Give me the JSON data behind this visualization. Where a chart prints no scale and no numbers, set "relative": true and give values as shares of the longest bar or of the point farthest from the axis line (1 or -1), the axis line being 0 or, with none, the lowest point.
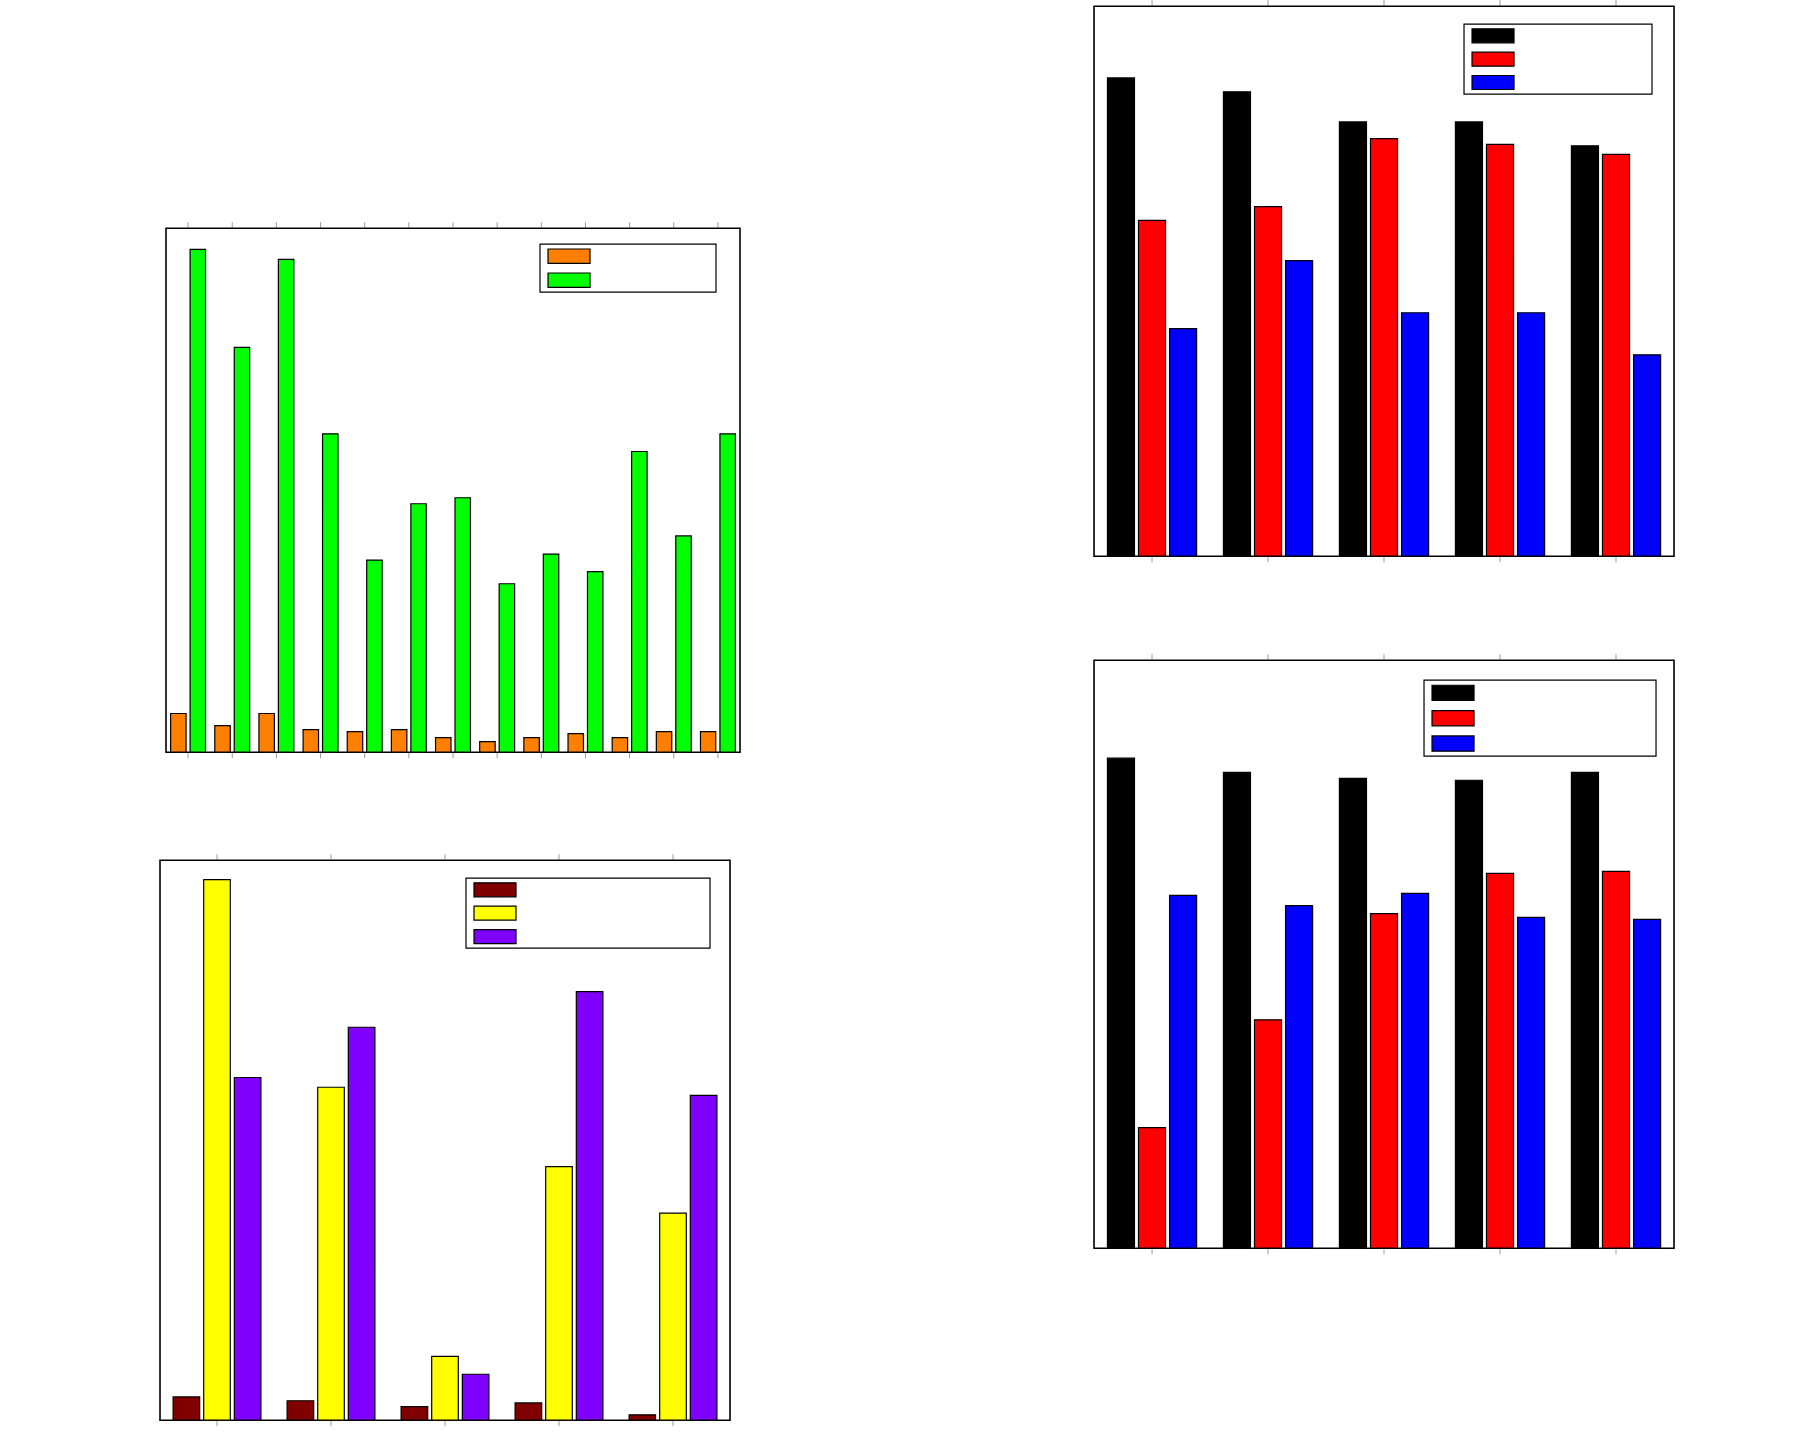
{
  "chart_data": [
    {
      "type": "bar",
      "relative": true,
      "categories": [
        null,
        null,
        null,
        null,
        null,
        null,
        null,
        null,
        null,
        null,
        null,
        null,
        null
      ],
      "series": [
        {
          "color": "#ff8000",
          "values": [
            0.077,
            0.053,
            0.077,
            0.045,
            0.041,
            0.045,
            0.029,
            0.021,
            0.029,
            0.037,
            0.029,
            0.041,
            0.041
          ]
        },
        {
          "color": "#00ff00",
          "values": [
            1,
            0.805,
            0.98,
            0.633,
            0.382,
            0.494,
            0.506,
            0.335,
            0.394,
            0.359,
            0.598,
            0.43,
            0.633
          ]
        }
      ]
    },
    {
      "type": "bar",
      "relative": true,
      "categories": [
        null,
        null,
        null,
        null,
        null
      ],
      "series": [
        {
          "color": "#800000",
          "values": [
            0.043,
            0.036,
            0.025,
            0.032,
            0.01
          ]
        },
        {
          "color": "#ffff00",
          "values": [
            1,
            0.616,
            0.118,
            0.469,
            0.383
          ]
        },
        {
          "color": "#8000ff",
          "values": [
            0.634,
            0.727,
            0.085,
            0.793,
            0.601
          ]
        }
      ]
    },
    {
      "type": "bar",
      "relative": true,
      "categories": [
        null,
        null,
        null,
        null,
        null
      ],
      "series": [
        {
          "color": "#000000",
          "values": [
            1,
            0.971,
            0.908,
            0.908,
            0.858
          ]
        },
        {
          "color": "#ff0000",
          "values": [
            0.702,
            0.731,
            0.873,
            0.861,
            0.84
          ]
        },
        {
          "color": "#0000ff",
          "values": [
            0.476,
            0.618,
            0.509,
            0.509,
            0.421
          ]
        }
      ]
    },
    {
      "type": "bar",
      "relative": true,
      "categories": [
        null,
        null,
        null,
        null,
        null
      ],
      "series": [
        {
          "color": "#000000",
          "values": [
            1,
            0.971,
            0.959,
            0.955,
            0.971
          ]
        },
        {
          "color": "#ff0000",
          "values": [
            0.246,
            0.466,
            0.683,
            0.765,
            0.769
          ]
        },
        {
          "color": "#0000ff",
          "values": [
            0.72,
            0.699,
            0.724,
            0.675,
            0.671
          ]
        }
      ]
    }
  ]
}
